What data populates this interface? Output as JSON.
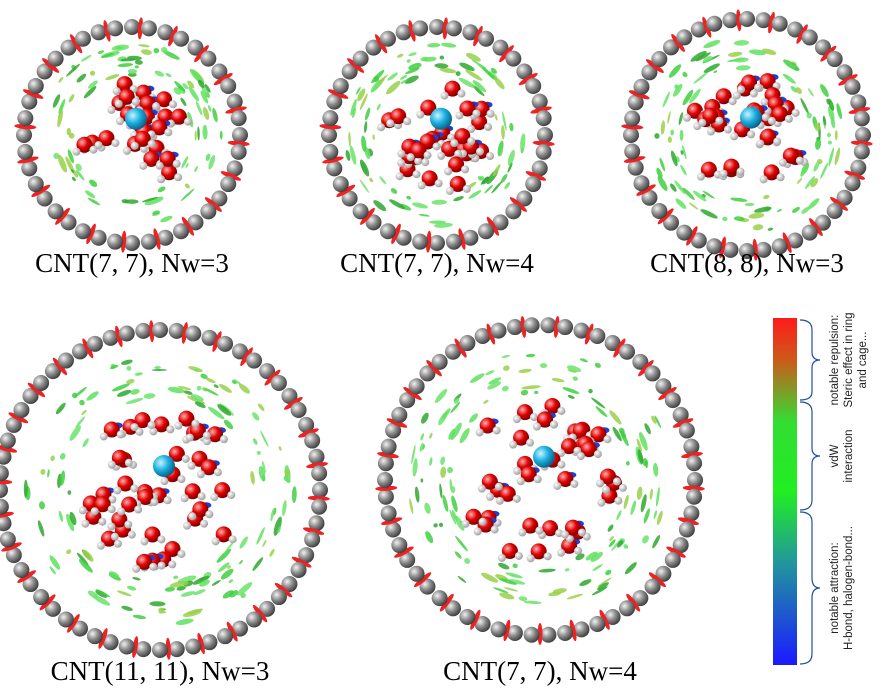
{
  "panels": [
    {
      "label": "CNT(7, 7), Nw=3"
    },
    {
      "label": "CNT(7, 7), Nw=4"
    },
    {
      "label": "CNT(8, 8), Nw=3"
    },
    {
      "label": "CNT(11, 11), Nw=3"
    },
    {
      "label": "CNT(7, 7), Nw=4"
    }
  ],
  "colorbar": {
    "groups": [
      {
        "lines": [
          "notable repulsion:",
          "Steric effect in ring",
          "and cage..."
        ]
      },
      {
        "lines": [
          "vdW",
          "interaction"
        ]
      },
      {
        "lines": [
          "notable attraction:",
          "H-bond, halogen-bond..."
        ]
      }
    ]
  }
}
